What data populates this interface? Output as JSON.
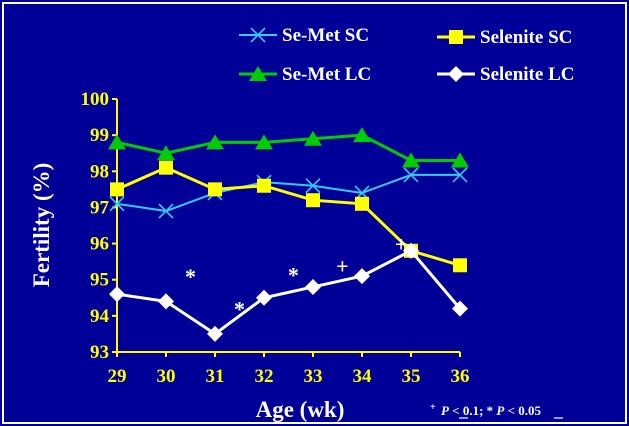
{
  "colors": {
    "background": "#000099",
    "frame": "#ffffff",
    "axis": "#ffff00",
    "Se-Met SC": "#33ccff",
    "Se-Met LC": "#00cc00",
    "Selenite SC": "#ffff00",
    "Selenite LC": "#ffffff"
  },
  "chart_data": {
    "type": "line",
    "xlabel": "Age (wk)",
    "ylabel": "Fertility (%)",
    "x": [
      29,
      30,
      31,
      32,
      33,
      34,
      35,
      36
    ],
    "ylim": [
      93,
      100
    ],
    "yticks": [
      93,
      94,
      95,
      96,
      97,
      98,
      99,
      100
    ],
    "grid": false,
    "legend_placement": "top",
    "series": [
      {
        "name": "Se-Met SC",
        "marker": "x",
        "values": [
          97.1,
          96.9,
          97.4,
          97.7,
          97.6,
          97.4,
          97.9,
          97.9
        ]
      },
      {
        "name": "Se-Met LC",
        "marker": "triangle",
        "values": [
          98.8,
          98.5,
          98.8,
          98.8,
          98.9,
          99.0,
          98.3,
          98.3
        ]
      },
      {
        "name": "Selenite SC",
        "marker": "square",
        "values": [
          97.5,
          98.1,
          97.5,
          97.6,
          97.2,
          97.1,
          95.8,
          95.4
        ]
      },
      {
        "name": "Selenite LC",
        "marker": "diamond",
        "values": [
          94.6,
          94.4,
          93.5,
          94.5,
          94.8,
          95.1,
          95.8,
          94.2
        ]
      }
    ],
    "annotations": [
      {
        "text": "*",
        "x": 30.5,
        "y": 95.1
      },
      {
        "text": "*",
        "x": 31.5,
        "y": 94.2
      },
      {
        "text": "*",
        "x": 32.6,
        "y": 95.15
      },
      {
        "text": "+",
        "x": 33.6,
        "y": 95.4
      },
      {
        "text": "+",
        "x": 34.8,
        "y": 96.0
      }
    ],
    "footnote": {
      "sup_plus": "+",
      "p1_italic": "P",
      "p1_rest": " < 0.1; * ",
      "p2_italic": "P",
      "p2_rest": " < 0.05"
    }
  }
}
